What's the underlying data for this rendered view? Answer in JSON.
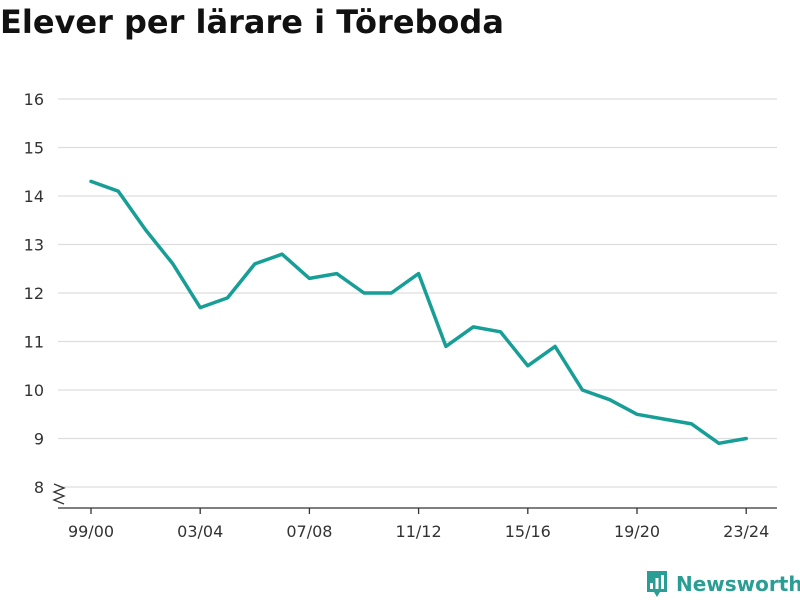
{
  "chart_data": {
    "type": "line",
    "title": "Elever per lärare i Töreboda",
    "xlabel": "",
    "ylabel": "",
    "x": [
      "99/00",
      "00/01",
      "01/02",
      "02/03",
      "03/04",
      "04/05",
      "05/06",
      "06/07",
      "07/08",
      "08/09",
      "09/10",
      "10/11",
      "11/12",
      "12/13",
      "13/14",
      "14/15",
      "15/16",
      "16/17",
      "17/18",
      "18/19",
      "19/20",
      "20/21",
      "21/22",
      "22/23",
      "23/24"
    ],
    "x_tick_labels": [
      "99/00",
      "03/04",
      "07/08",
      "11/12",
      "15/16",
      "19/20",
      "23/24"
    ],
    "series": [
      {
        "values": [
          14.3,
          14.1,
          13.3,
          12.6,
          11.7,
          11.9,
          12.6,
          12.8,
          12.3,
          12.4,
          12.0,
          12.0,
          12.4,
          10.9,
          11.3,
          11.2,
          10.5,
          10.9,
          10.0,
          9.8,
          9.5,
          9.4,
          9.3,
          8.9,
          9.0
        ]
      }
    ],
    "y_ticks": [
      8,
      9,
      10,
      11,
      12,
      13,
      14,
      15,
      16
    ],
    "ylim": [
      8,
      16
    ],
    "y_axis_break": true,
    "grid": true,
    "legend": "none",
    "colors": {
      "line": "#179e96",
      "grid": "#dddddd",
      "axis": "#333333",
      "tick_label": "#333333"
    }
  },
  "branding": {
    "name": "Newsworthy",
    "icon": "newsworthy-logo-icon",
    "color": "#2a9d94"
  }
}
